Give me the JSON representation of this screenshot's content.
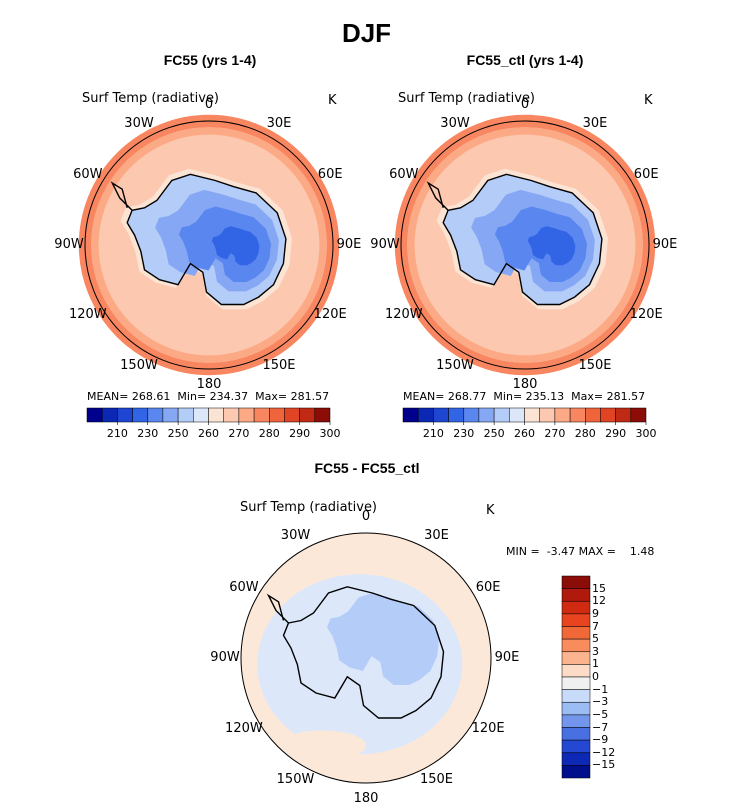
{
  "title": "DJF",
  "panels": [
    {
      "id": "fc55",
      "title": "FC55 (yrs 1-4)",
      "variable": "Surf Temp (radiative)",
      "units": "K",
      "stats": {
        "mean_label": "MEAN=",
        "mean": "268.61",
        "min_label": "Min=",
        "min": "234.37",
        "max_label": "Max=",
        "max": "281.57"
      }
    },
    {
      "id": "fc55_ctl",
      "title": "FC55_ctl (yrs 1-4)",
      "variable": "Surf Temp (radiative)",
      "units": "K",
      "stats": {
        "mean_label": "MEAN=",
        "mean": "268.77",
        "min_label": "Min=",
        "min": "235.13",
        "max_label": "Max=",
        "max": "281.57"
      }
    },
    {
      "id": "diff",
      "title": "FC55 - FC55_ctl",
      "variable": "Surf Temp (radiative)",
      "units": "K",
      "stats": {
        "min_label": "MIN =",
        "min": "-3.47",
        "max_label": "MAX =",
        "max": "1.48"
      }
    }
  ],
  "longitude_labels": [
    "0",
    "30E",
    "60E",
    "90E",
    "120E",
    "150E",
    "180",
    "150W",
    "120W",
    "90W",
    "60W",
    "30W"
  ],
  "chart_data": [
    {
      "type": "heatmap",
      "projection": "south-polar-stereographic",
      "title": "FC55 (yrs 1-4)",
      "variable": "Surf Temp (radiative)",
      "units": "K",
      "colorbar_ticks": [
        "210",
        "230",
        "250",
        "260",
        "270",
        "280",
        "290",
        "300"
      ],
      "colorbar_colors": [
        "#00008c",
        "#0a28b4",
        "#1e46d2",
        "#3264e6",
        "#5a86f0",
        "#86a8f4",
        "#b4ccf8",
        "#dce8fa",
        "#fce4d4",
        "#fcc8b0",
        "#fcaa86",
        "#f88660",
        "#f0643c",
        "#e04424",
        "#c02a14",
        "#8c0c08"
      ],
      "mean": 268.61,
      "min": 234.37,
      "max": 281.57
    },
    {
      "type": "heatmap",
      "projection": "south-polar-stereographic",
      "title": "FC55_ctl (yrs 1-4)",
      "variable": "Surf Temp (radiative)",
      "units": "K",
      "colorbar_ticks": [
        "210",
        "230",
        "250",
        "260",
        "270",
        "280",
        "290",
        "300"
      ],
      "colorbar_colors": [
        "#00008c",
        "#0a28b4",
        "#1e46d2",
        "#3264e6",
        "#5a86f0",
        "#86a8f4",
        "#b4ccf8",
        "#dce8fa",
        "#fce4d4",
        "#fcc8b0",
        "#fcaa86",
        "#f88660",
        "#f0643c",
        "#e04424",
        "#c02a14",
        "#8c0c08"
      ],
      "mean": 268.77,
      "min": 235.13,
      "max": 281.57
    },
    {
      "type": "heatmap",
      "projection": "south-polar-stereographic",
      "title": "FC55 - FC55_ctl",
      "variable": "Surf Temp (radiative)",
      "units": "K",
      "colorbar_ticks": [
        "15",
        "12",
        "9",
        "7",
        "5",
        "3",
        "1",
        "0",
        "−1",
        "−3",
        "−5",
        "−7",
        "−9",
        "−12",
        "−15"
      ],
      "colorbar_colors": [
        "#8c0c08",
        "#b01a0c",
        "#d02a10",
        "#e84420",
        "#f06838",
        "#f88c5c",
        "#fcb48e",
        "#fcdcc6",
        "#f0f0f0",
        "#c8dcfa",
        "#9cbcf4",
        "#7296ec",
        "#4870e2",
        "#2448d2",
        "#0c28b4",
        "#00108c"
      ],
      "min": -3.47,
      "max": 1.48
    }
  ]
}
